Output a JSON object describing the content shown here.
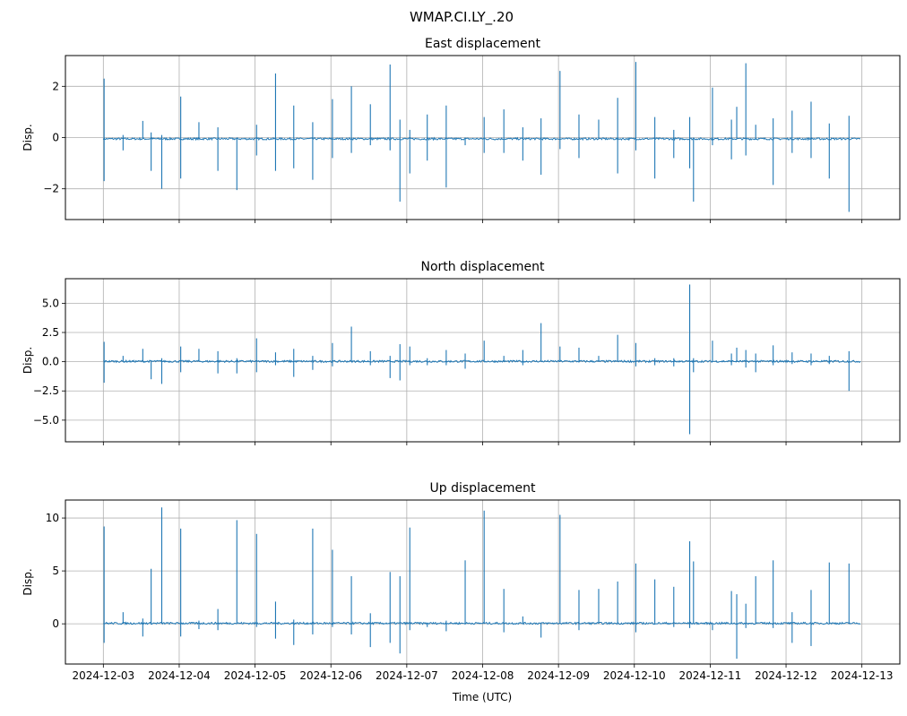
{
  "chart_data": {
    "type": "line",
    "suptitle": "WMAP.CI.LY_.20",
    "xlabel": "Time (UTC)",
    "x_ticks": [
      "2024-12-03",
      "2024-12-04",
      "2024-12-05",
      "2024-12-06",
      "2024-12-07",
      "2024-12-08",
      "2024-12-09",
      "2024-12-10",
      "2024-12-11",
      "2024-12-12",
      "2024-12-13"
    ],
    "x_unit": "days since 2024-12-03 00:00 UTC",
    "xlim": [
      -0.5,
      10.5
    ],
    "data_end": 9.98,
    "line_color": "#1f77b4",
    "grid": true,
    "panels": [
      {
        "title": "East displacement",
        "ylabel": "Disp.",
        "ylim": [
          -3.2,
          3.2
        ],
        "yticks": [
          -2,
          0,
          2
        ],
        "ytick_labels": [
          "−2",
          "0",
          "2"
        ],
        "baseline": -0.05
      },
      {
        "title": "North displacement",
        "ylabel": "Disp.",
        "ylim": [
          -6.85,
          7.1
        ],
        "yticks": [
          -5,
          -2.5,
          0,
          2.5,
          5
        ],
        "ytick_labels": [
          "−5.0",
          "−2.5",
          "0.0",
          "2.5",
          "5.0"
        ],
        "baseline": 0.03
      },
      {
        "title": "Up displacement",
        "ylabel": "Disp.",
        "ylim": [
          -3.8,
          11.7
        ],
        "yticks": [
          0,
          5,
          10
        ],
        "ytick_labels": [
          "0",
          "5",
          "10"
        ],
        "baseline": 0.05
      }
    ],
    "spike_columns": [
      "t_days",
      "east_max",
      "east_min",
      "north_max",
      "north_min",
      "up_max",
      "up_min"
    ],
    "spikes": [
      [
        0.01,
        2.3,
        -1.7,
        1.7,
        -1.8,
        9.2,
        -1.8
      ],
      [
        0.26,
        0.1,
        -0.5,
        0.5,
        0,
        1.1,
        0
      ],
      [
        0.52,
        0.65,
        0,
        1.1,
        0,
        0.5,
        -1.2
      ],
      [
        0.63,
        0.2,
        -1.3,
        0,
        -1.5,
        5.2,
        0
      ],
      [
        0.77,
        0.1,
        -2.0,
        0.3,
        -1.9,
        11,
        0
      ],
      [
        1.02,
        1.6,
        -1.6,
        1.3,
        -0.9,
        9,
        -1.2
      ],
      [
        1.26,
        0.6,
        -0.1,
        1.1,
        0,
        0.3,
        -0.5
      ],
      [
        1.51,
        0.4,
        -1.3,
        0.9,
        -1,
        1.4,
        -0.6
      ],
      [
        1.76,
        0,
        -2.05,
        0.3,
        -1,
        9.8,
        0
      ],
      [
        2.02,
        0.5,
        -0.7,
        2,
        -0.9,
        8.5,
        -0.3
      ],
      [
        2.27,
        2.5,
        -1.3,
        0.8,
        -0.3,
        2.1,
        -1.4
      ],
      [
        2.51,
        1.25,
        -1.2,
        1.1,
        -1.3,
        0.4,
        -2
      ],
      [
        2.76,
        0.6,
        -1.65,
        0.5,
        -0.7,
        9,
        -1
      ],
      [
        3.02,
        1.5,
        -0.8,
        1.6,
        -0.4,
        7,
        -0.3
      ],
      [
        3.27,
        2,
        -0.6,
        3,
        0,
        4.5,
        -1
      ],
      [
        3.52,
        1.3,
        -0.3,
        0.9,
        -0.3,
        1,
        -2.2
      ],
      [
        3.78,
        2.85,
        -0.5,
        0.5,
        -1.4,
        4.9,
        -1.8
      ],
      [
        3.91,
        0.7,
        -2.5,
        1.5,
        -1.6,
        4.5,
        -2.8
      ],
      [
        4.04,
        0.3,
        -1.4,
        1.3,
        -0.3,
        9.1,
        -0.6
      ],
      [
        4.27,
        0.9,
        -0.9,
        0.3,
        -0.3,
        0,
        -0.3
      ],
      [
        4.52,
        1.25,
        -1.95,
        1,
        -0.3,
        0.3,
        -0.7
      ],
      [
        4.77,
        0,
        -0.3,
        0.7,
        -0.6,
        6,
        0
      ],
      [
        5.02,
        0.8,
        -0.6,
        1.8,
        0,
        10.7,
        0
      ],
      [
        5.28,
        1.1,
        -0.6,
        0.5,
        0,
        3.3,
        -0.8
      ],
      [
        5.53,
        0.4,
        -0.9,
        1,
        -0.3,
        0.7,
        0
      ],
      [
        5.77,
        0.75,
        -1.45,
        3.3,
        0,
        0,
        -1.3
      ],
      [
        6.02,
        2.6,
        -0.45,
        1.3,
        0,
        10.3,
        0
      ],
      [
        6.27,
        0.9,
        -0.8,
        1.2,
        0,
        3.2,
        -0.6
      ],
      [
        6.53,
        0.7,
        0,
        0.5,
        0,
        3.3,
        0
      ],
      [
        6.78,
        1.55,
        -1.4,
        2.3,
        0,
        4,
        0
      ],
      [
        7.02,
        2.95,
        -0.5,
        1.6,
        -0.4,
        5.7,
        -0.8
      ],
      [
        7.27,
        0.8,
        -1.6,
        0.3,
        -0.3,
        4.2,
        0
      ],
      [
        7.52,
        0.3,
        -0.8,
        0.3,
        -0.4,
        3.5,
        -0.3
      ],
      [
        7.73,
        0.8,
        -1.2,
        6.6,
        -6.2,
        7.8,
        -0.4
      ],
      [
        7.78,
        0,
        -2.5,
        0.3,
        -0.9,
        5.9,
        0
      ],
      [
        8.03,
        1.95,
        -0.3,
        1.8,
        0,
        0,
        -0.6
      ],
      [
        8.28,
        0.7,
        -0.85,
        0.7,
        -0.3,
        3.1,
        0
      ],
      [
        8.35,
        1.2,
        0,
        1.2,
        0,
        2.8,
        -3.3
      ],
      [
        8.47,
        2.9,
        -0.7,
        1,
        -0.5,
        1.9,
        -0.4
      ],
      [
        8.6,
        0.5,
        0,
        0.7,
        -0.9,
        4.5,
        0
      ],
      [
        8.83,
        0.75,
        -1.85,
        1.4,
        -0.3,
        6,
        -0.4
      ],
      [
        9.08,
        1.05,
        -0.6,
        0.8,
        -0.2,
        1.1,
        -1.8
      ],
      [
        9.33,
        1.4,
        -0.8,
        0.7,
        -0.3,
        3.2,
        -2.1
      ],
      [
        9.57,
        0.55,
        -1.6,
        0.5,
        -0.2,
        5.8,
        0
      ],
      [
        9.83,
        0.85,
        -2.9,
        0.9,
        -2.5,
        5.7,
        0
      ]
    ]
  }
}
